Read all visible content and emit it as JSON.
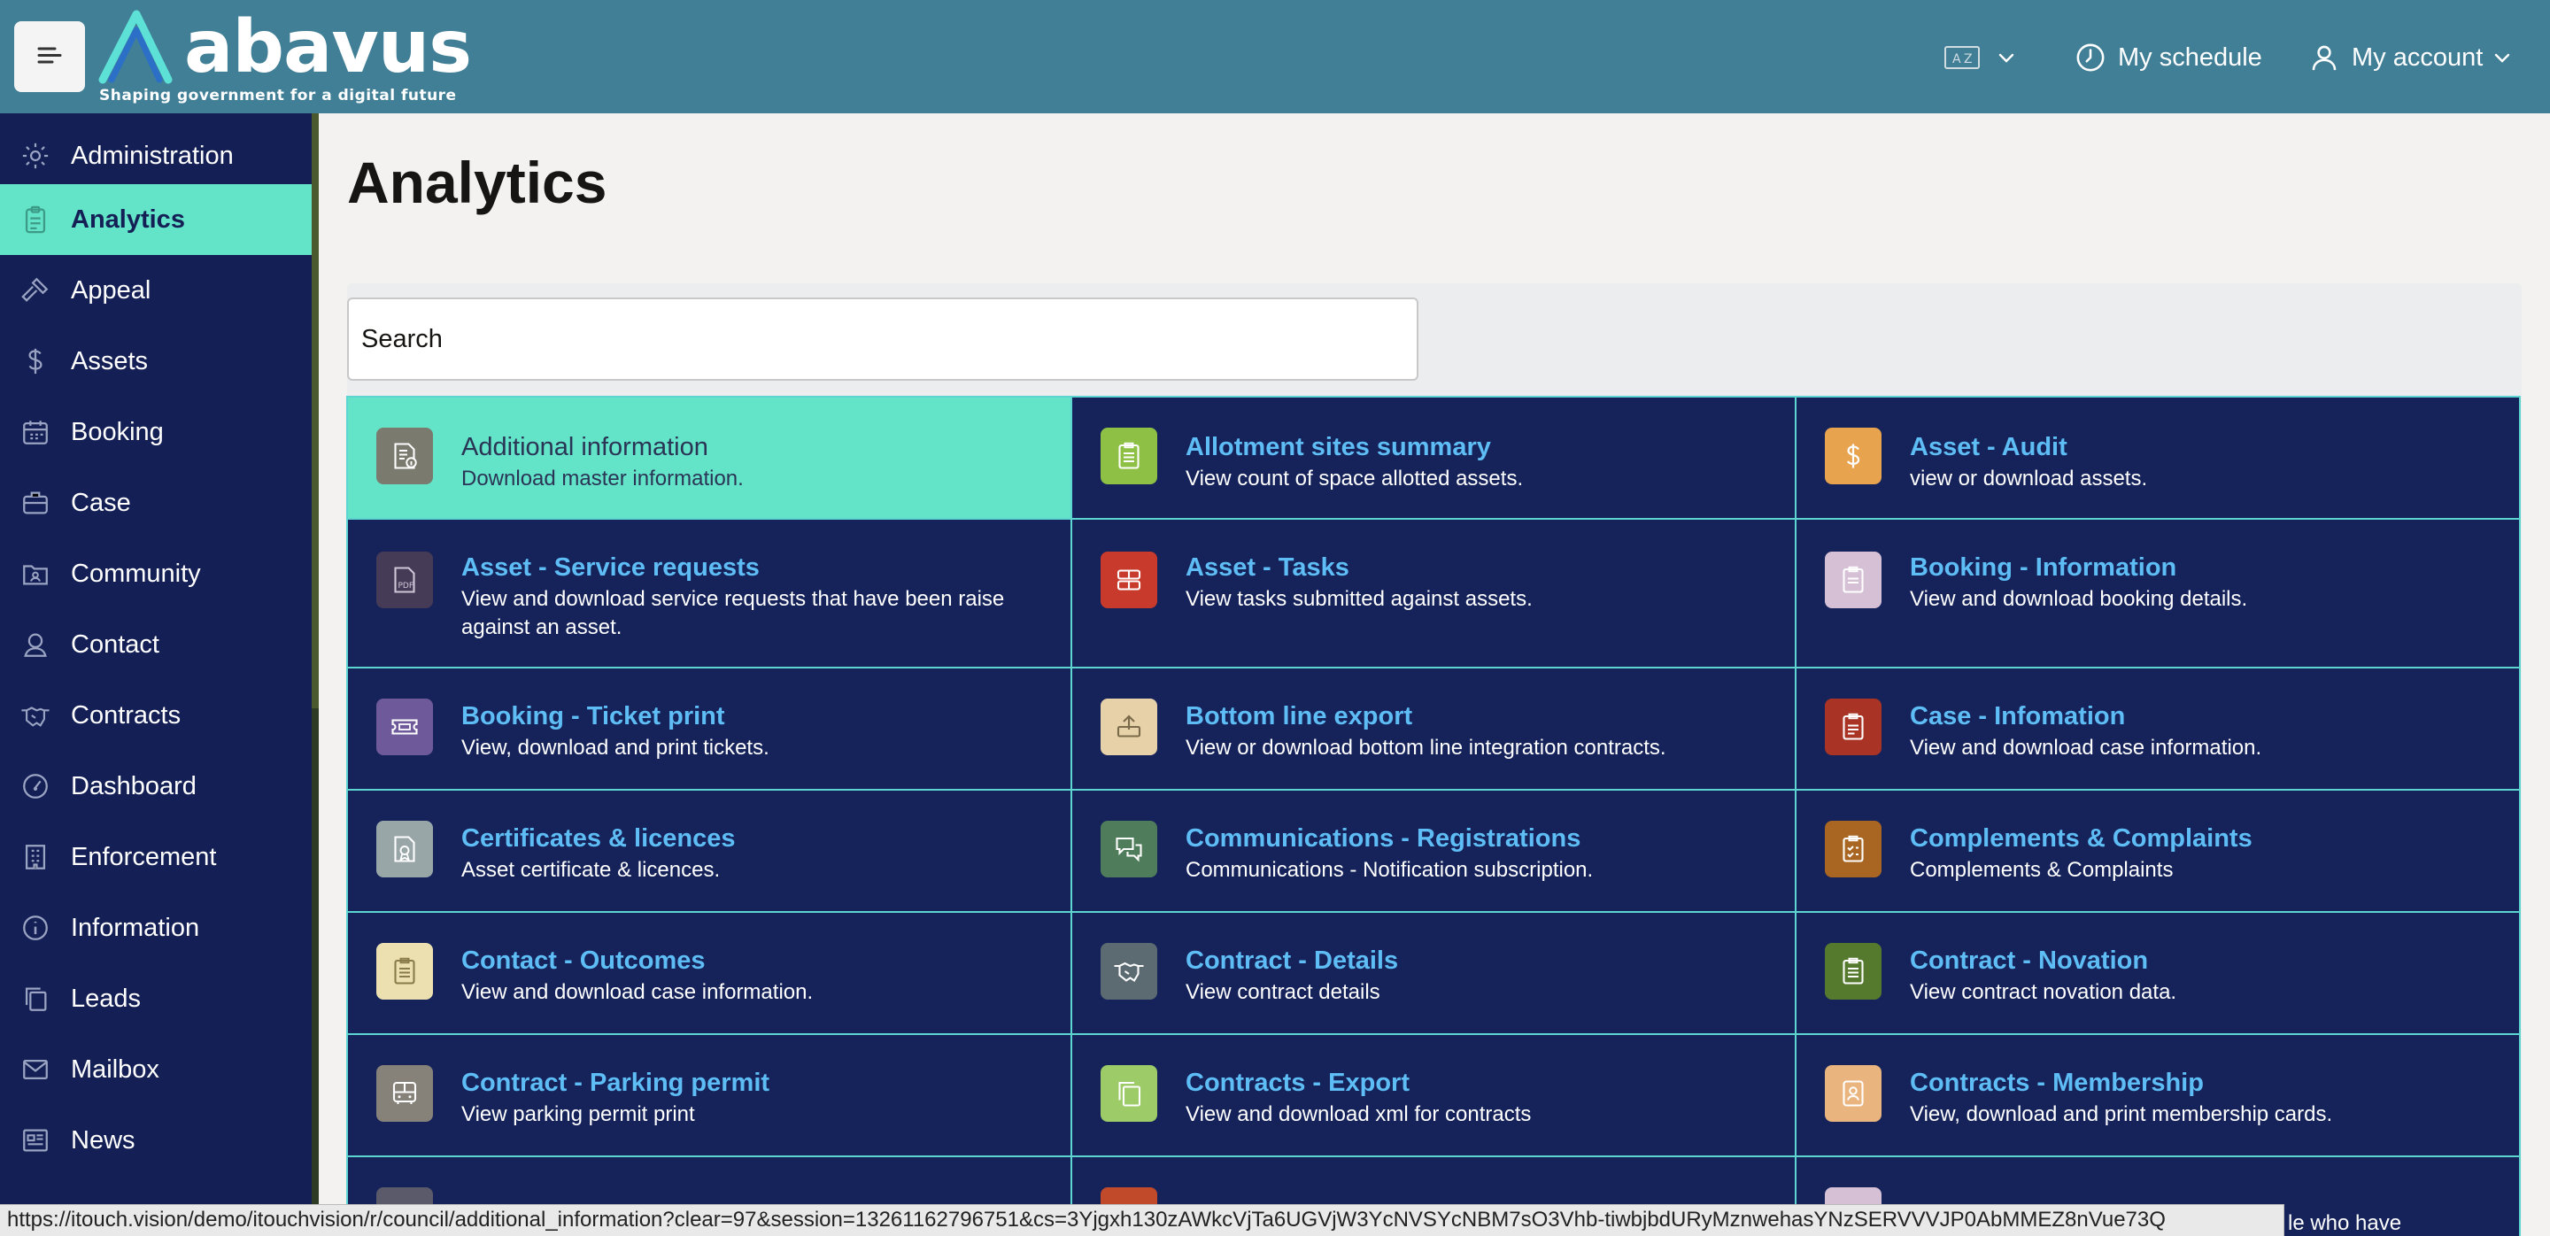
{
  "header": {
    "logo_text": "abavus",
    "logo_tagline": "Shaping government for a digital future",
    "language_icon": "language-icon",
    "schedule_label": "My schedule",
    "account_label": "My account",
    "background_color": "#417f97"
  },
  "sidebar": {
    "items": [
      {
        "label": "Administration",
        "icon": "gear-icon"
      },
      {
        "label": "Analytics",
        "icon": "clipboard-icon",
        "active": true
      },
      {
        "label": "Appeal",
        "icon": "gavel-icon"
      },
      {
        "label": "Assets",
        "icon": "dollar-icon"
      },
      {
        "label": "Booking",
        "icon": "calendar-icon"
      },
      {
        "label": "Case",
        "icon": "briefcase-icon"
      },
      {
        "label": "Community",
        "icon": "folder-user-icon"
      },
      {
        "label": "Contact",
        "icon": "contact-icon"
      },
      {
        "label": "Contracts",
        "icon": "handshake-icon"
      },
      {
        "label": "Dashboard",
        "icon": "gauge-icon"
      },
      {
        "label": "Enforcement",
        "icon": "building-icon"
      },
      {
        "label": "Information",
        "icon": "info-icon"
      },
      {
        "label": "Leads",
        "icon": "copy-icon"
      },
      {
        "label": "Mailbox",
        "icon": "mail-icon"
      },
      {
        "label": "News",
        "icon": "newspaper-icon"
      }
    ],
    "background_color": "#142055",
    "active_color": "#63e3c8"
  },
  "main": {
    "title": "Analytics",
    "search_value": "Search",
    "cards": [
      {
        "title": "Additional information",
        "desc": "Download master information.",
        "icon": "document-info-icon",
        "color": "#7a7a6e"
      },
      {
        "title": "Allotment sites summary",
        "desc": "View count of space allotted assets.",
        "icon": "clipboard-list-icon",
        "color": "#8dc044"
      },
      {
        "title": "Asset - Audit",
        "desc": "view or download assets.",
        "icon": "dollar-icon",
        "color": "#e8a34e"
      },
      {
        "title": "Asset - Service requests",
        "desc": "View and download service requests that have been raise against an asset.",
        "icon": "pdf-icon",
        "color": "#463b56"
      },
      {
        "title": "Asset - Tasks",
        "desc": "View tasks submitted against assets.",
        "icon": "tasks-icon",
        "color": "#c83a2b"
      },
      {
        "title": "Booking - Information",
        "desc": "View and download booking details.",
        "icon": "clipboard-icon",
        "color": "#d6c0d6"
      },
      {
        "title": "Booking - Ticket print",
        "desc": "View, download and print tickets.",
        "icon": "ticket-icon",
        "color": "#6e5a9a"
      },
      {
        "title": "Bottom line export",
        "desc": "View or download bottom line integration contracts.",
        "icon": "export-icon",
        "color": "#e6d1a8"
      },
      {
        "title": "Case - Infomation",
        "desc": "View and download case information.",
        "icon": "clipboard-check-icon",
        "color": "#a93324"
      },
      {
        "title": "Certificates & licences",
        "desc": "Asset certificate & licences.",
        "icon": "certificate-icon",
        "color": "#98a6a8"
      },
      {
        "title": "Communications - Registrations",
        "desc": "Communications - Notification subscription.",
        "icon": "chat-icon",
        "color": "#4f7c5a"
      },
      {
        "title": "Complements & Complaints",
        "desc": "Complements & Complaints",
        "icon": "clipboard-check-icon",
        "color": "#a86622"
      },
      {
        "title": "Contact - Outcomes",
        "desc": "View and download case information.",
        "icon": "clipboard-list-icon",
        "color": "#ece0b0"
      },
      {
        "title": "Contract - Details",
        "desc": "View contract details",
        "icon": "handshake-icon",
        "color": "#5c6a72"
      },
      {
        "title": "Contract - Novation",
        "desc": "View contract novation data.",
        "icon": "clipboard-list-icon",
        "color": "#557a2e"
      },
      {
        "title": "Contract - Parking permit",
        "desc": "View parking permit print",
        "icon": "bus-icon",
        "color": "#86827a"
      },
      {
        "title": "Contracts - Export",
        "desc": "View and download xml for contracts",
        "icon": "copy-icon",
        "color": "#9ccb68"
      },
      {
        "title": "Contracts - Membership",
        "desc": "View, download and print membership cards.",
        "icon": "id-card-icon",
        "color": "#eab47e"
      }
    ]
  },
  "statusbar": {
    "url": "https://itouch.vision/demo/itouchvision/r/council/additional_information?clear=97&session=13261162796751&cs=3Yjgxh130zAWkcVjTa6UGVjW3YcNVSYcNBM7sO3Vhb-tiwbjbdURyMznwehasYNzSERVVVJP0AbMMEZ8nVue73Q",
    "peek_text": "le who have"
  }
}
